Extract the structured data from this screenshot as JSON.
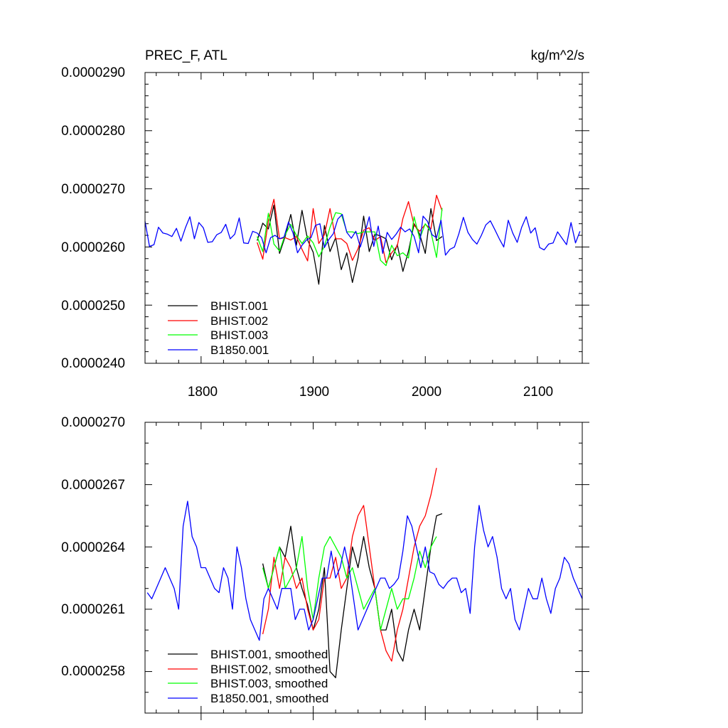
{
  "chart_data": [
    {
      "type": "line",
      "title": "PREC_F, ATL",
      "units": "kg/m^2/s",
      "xlim": [
        1750,
        2140
      ],
      "ylim": [
        2.4e-05,
        2.9e-05
      ],
      "xticks": [
        1800,
        1900,
        2000,
        2100
      ],
      "xtick_labels": [
        "1800",
        "1900",
        "2000",
        "2100"
      ],
      "yticks": [
        2.4e-05,
        2.5e-05,
        2.6e-05,
        2.7e-05,
        2.8e-05,
        2.9e-05
      ],
      "ytick_labels": [
        "0.0000240",
        "0.0000250",
        "0.0000260",
        "0.0000270",
        "0.0000280",
        "0.0000290"
      ],
      "legend_position": "bottom-left",
      "series": [
        {
          "name": "BHIST.001",
          "color": "#000000",
          "x_start": 1850,
          "x_step": 5,
          "values": [
            2.611e-05,
            2.641e-05,
            2.631e-05,
            2.672e-05,
            2.589e-05,
            2.618e-05,
            2.656e-05,
            2.603e-05,
            2.663e-05,
            2.612e-05,
            2.591e-05,
            2.536e-05,
            2.637e-05,
            2.592e-05,
            2.616e-05,
            2.561e-05,
            2.59e-05,
            2.539e-05,
            2.581e-05,
            2.653e-05,
            2.592e-05,
            2.622e-05,
            2.619e-05,
            2.614e-05,
            2.578e-05,
            2.604e-05,
            2.558e-05,
            2.593e-05,
            2.64e-05,
            2.622e-05,
            2.589e-05,
            2.666e-05,
            2.611e-05,
            2.618e-05
          ]
        },
        {
          "name": "BHIST.002",
          "color": "#ff0000",
          "x_start": 1850,
          "x_step": 5,
          "values": [
            2.608e-05,
            2.579e-05,
            2.645e-05,
            2.682e-05,
            2.614e-05,
            2.616e-05,
            2.612e-05,
            2.618e-05,
            2.596e-05,
            2.576e-05,
            2.666e-05,
            2.606e-05,
            2.621e-05,
            2.666e-05,
            2.614e-05,
            2.614e-05,
            2.606e-05,
            2.577e-05,
            2.597e-05,
            2.629e-05,
            2.633e-05,
            2.611e-05,
            2.618e-05,
            2.573e-05,
            2.59e-05,
            2.602e-05,
            2.649e-05,
            2.678e-05,
            2.637e-05,
            2.627e-05,
            2.639e-05,
            2.631e-05,
            2.689e-05,
            2.662e-05
          ]
        },
        {
          "name": "BHIST.003",
          "color": "#00ff00",
          "x_start": 1850,
          "x_step": 5,
          "values": [
            2.618e-05,
            2.592e-05,
            2.658e-05,
            2.605e-05,
            2.593e-05,
            2.621e-05,
            2.639e-05,
            2.62e-05,
            2.606e-05,
            2.619e-05,
            2.607e-05,
            2.583e-05,
            2.601e-05,
            2.634e-05,
            2.659e-05,
            2.657e-05,
            2.626e-05,
            2.626e-05,
            2.623e-05,
            2.626e-05,
            2.626e-05,
            2.626e-05,
            2.577e-05,
            2.568e-05,
            2.603e-05,
            2.585e-05,
            2.59e-05,
            2.581e-05,
            2.652e-05,
            2.614e-05,
            2.64e-05,
            2.626e-05,
            2.582e-05,
            2.667e-05
          ]
        },
        {
          "name": "B1850.001",
          "color": "#0000ff",
          "x_start": 1750,
          "x_step": 4,
          "values": [
            2.644e-05,
            2.601e-05,
            2.604e-05,
            2.634e-05,
            2.624e-05,
            2.622e-05,
            2.618e-05,
            2.632e-05,
            2.61e-05,
            2.633e-05,
            2.652e-05,
            2.614e-05,
            2.642e-05,
            2.633e-05,
            2.608e-05,
            2.609e-05,
            2.621e-05,
            2.625e-05,
            2.639e-05,
            2.614e-05,
            2.622e-05,
            2.65e-05,
            2.607e-05,
            2.606e-05,
            2.627e-05,
            2.624e-05,
            2.616e-05,
            2.59e-05,
            2.616e-05,
            2.62e-05,
            2.614e-05,
            2.617e-05,
            2.643e-05,
            2.624e-05,
            2.59e-05,
            2.603e-05,
            2.612e-05,
            2.616e-05,
            2.637e-05,
            2.64e-05,
            2.599e-05,
            2.613e-05,
            2.623e-05,
            2.648e-05,
            2.656e-05,
            2.625e-05,
            2.615e-05,
            2.627e-05,
            2.6e-05,
            2.624e-05,
            2.652e-05,
            2.601e-05,
            2.636e-05,
            2.589e-05,
            2.625e-05,
            2.613e-05,
            2.622e-05,
            2.634e-05,
            2.626e-05,
            2.631e-05,
            2.618e-05,
            2.59e-05,
            2.653e-05,
            2.644e-05,
            2.621e-05,
            2.616e-05,
            2.646e-05,
            2.586e-05,
            2.596e-05,
            2.6e-05,
            2.623e-05,
            2.651e-05,
            2.625e-05,
            2.613e-05,
            2.605e-05,
            2.62e-05,
            2.638e-05,
            2.645e-05,
            2.63e-05,
            2.614e-05,
            2.6e-05,
            2.646e-05,
            2.624e-05,
            2.608e-05,
            2.634e-05,
            2.652e-05,
            2.624e-05,
            2.633e-05,
            2.599e-05,
            2.595e-05,
            2.605e-05,
            2.607e-05,
            2.626e-05,
            2.615e-05,
            2.604e-05,
            2.642e-05,
            2.607e-05,
            2.627e-05
          ]
        }
      ]
    },
    {
      "type": "line",
      "xlim": [
        1750,
        2140
      ],
      "ylim": [
        2.56e-05,
        2.7e-05
      ],
      "xticks": [
        1800,
        1900,
        2000,
        2100
      ],
      "yticks": [
        2.58e-05,
        2.61e-05,
        2.64e-05,
        2.67e-05,
        2.7e-05
      ],
      "ytick_labels": [
        "0.0000258",
        "0.0000261",
        "0.0000264",
        "0.0000267",
        "0.0000270"
      ],
      "legend_position": "bottom-left",
      "series": [
        {
          "name": "BHIST.001, smoothed",
          "color": "#000000",
          "x_start": 1855,
          "x_step": 5,
          "values": [
            2.632e-05,
            2.62e-05,
            2.63e-05,
            2.64e-05,
            2.635e-05,
            2.65e-05,
            2.63e-05,
            2.62e-05,
            2.612e-05,
            2.6e-05,
            2.61e-05,
            2.63e-05,
            2.58e-05,
            2.577e-05,
            2.6e-05,
            2.62e-05,
            2.64e-05,
            2.63e-05,
            2.645e-05,
            2.63e-05,
            2.62e-05,
            2.6e-05,
            2.6e-05,
            2.61e-05,
            2.59e-05,
            2.585e-05,
            2.6e-05,
            2.61e-05,
            2.6e-05,
            2.62e-05,
            2.64e-05,
            2.655e-05,
            2.656e-05
          ]
        },
        {
          "name": "BHIST.002, smoothed",
          "color": "#ff0000",
          "x_start": 1855,
          "x_step": 5,
          "values": [
            2.598e-05,
            2.61e-05,
            2.635e-05,
            2.62e-05,
            2.635e-05,
            2.63e-05,
            2.62e-05,
            2.625e-05,
            2.61e-05,
            2.6e-05,
            2.605e-05,
            2.625e-05,
            2.625e-05,
            2.635e-05,
            2.62e-05,
            2.625e-05,
            2.645e-05,
            2.655e-05,
            2.66e-05,
            2.64e-05,
            2.62e-05,
            2.6e-05,
            2.59e-05,
            2.585e-05,
            2.6e-05,
            2.61e-05,
            2.625e-05,
            2.64e-05,
            2.65e-05,
            2.655e-05,
            2.665e-05,
            2.678e-05
          ]
        },
        {
          "name": "BHIST.003, smoothed",
          "color": "#00ff00",
          "x_start": 1855,
          "x_step": 5,
          "values": [
            2.63e-05,
            2.62e-05,
            2.63e-05,
            2.64e-05,
            2.62e-05,
            2.625e-05,
            2.63e-05,
            2.645e-05,
            2.62e-05,
            2.605e-05,
            2.625e-05,
            2.64e-05,
            2.645e-05,
            2.64e-05,
            2.635e-05,
            2.625e-05,
            2.63e-05,
            2.62e-05,
            2.61e-05,
            2.615e-05,
            2.62e-05,
            2.6e-05,
            2.61e-05,
            2.62e-05,
            2.61e-05,
            2.615e-05,
            2.615e-05,
            2.625e-05,
            2.638e-05,
            2.63e-05,
            2.64e-05,
            2.645e-05
          ]
        },
        {
          "name": "B1850.001, smoothed",
          "color": "#0000ff",
          "x_start": 1752,
          "x_step": 4,
          "values": [
            2.618e-05,
            2.615e-05,
            2.62e-05,
            2.625e-05,
            2.63e-05,
            2.625e-05,
            2.62e-05,
            2.61e-05,
            2.65e-05,
            2.662e-05,
            2.645e-05,
            2.64e-05,
            2.63e-05,
            2.63e-05,
            2.625e-05,
            2.62e-05,
            2.618e-05,
            2.63e-05,
            2.625e-05,
            2.61e-05,
            2.64e-05,
            2.63e-05,
            2.615e-05,
            2.605e-05,
            2.6e-05,
            2.595e-05,
            2.615e-05,
            2.62e-05,
            2.615e-05,
            2.61e-05,
            2.62e-05,
            2.62e-05,
            2.62e-05,
            2.605e-05,
            2.61e-05,
            2.61e-05,
            2.6e-05,
            2.605e-05,
            2.615e-05,
            2.625e-05,
            2.625e-05,
            2.638e-05,
            2.625e-05,
            2.63e-05,
            2.64e-05,
            2.63e-05,
            2.615e-05,
            2.6e-05,
            2.605e-05,
            2.61e-05,
            2.615e-05,
            2.62e-05,
            2.625e-05,
            2.625e-05,
            2.62e-05,
            2.622e-05,
            2.625e-05,
            2.638e-05,
            2.655e-05,
            2.65e-05,
            2.64e-05,
            2.63e-05,
            2.64e-05,
            2.628e-05,
            2.627e-05,
            2.622e-05,
            2.62e-05,
            2.623e-05,
            2.625e-05,
            2.625e-05,
            2.618e-05,
            2.62e-05,
            2.608e-05,
            2.64e-05,
            2.66e-05,
            2.648e-05,
            2.64e-05,
            2.645e-05,
            2.635e-05,
            2.62e-05,
            2.615e-05,
            2.62e-05,
            2.605e-05,
            2.6e-05,
            2.61e-05,
            2.62e-05,
            2.615e-05,
            2.615e-05,
            2.625e-05,
            2.615e-05,
            2.608e-05,
            2.62e-05,
            2.625e-05,
            2.635e-05,
            2.632e-05,
            2.625e-05,
            2.62e-05,
            2.615e-05
          ]
        }
      ]
    }
  ]
}
